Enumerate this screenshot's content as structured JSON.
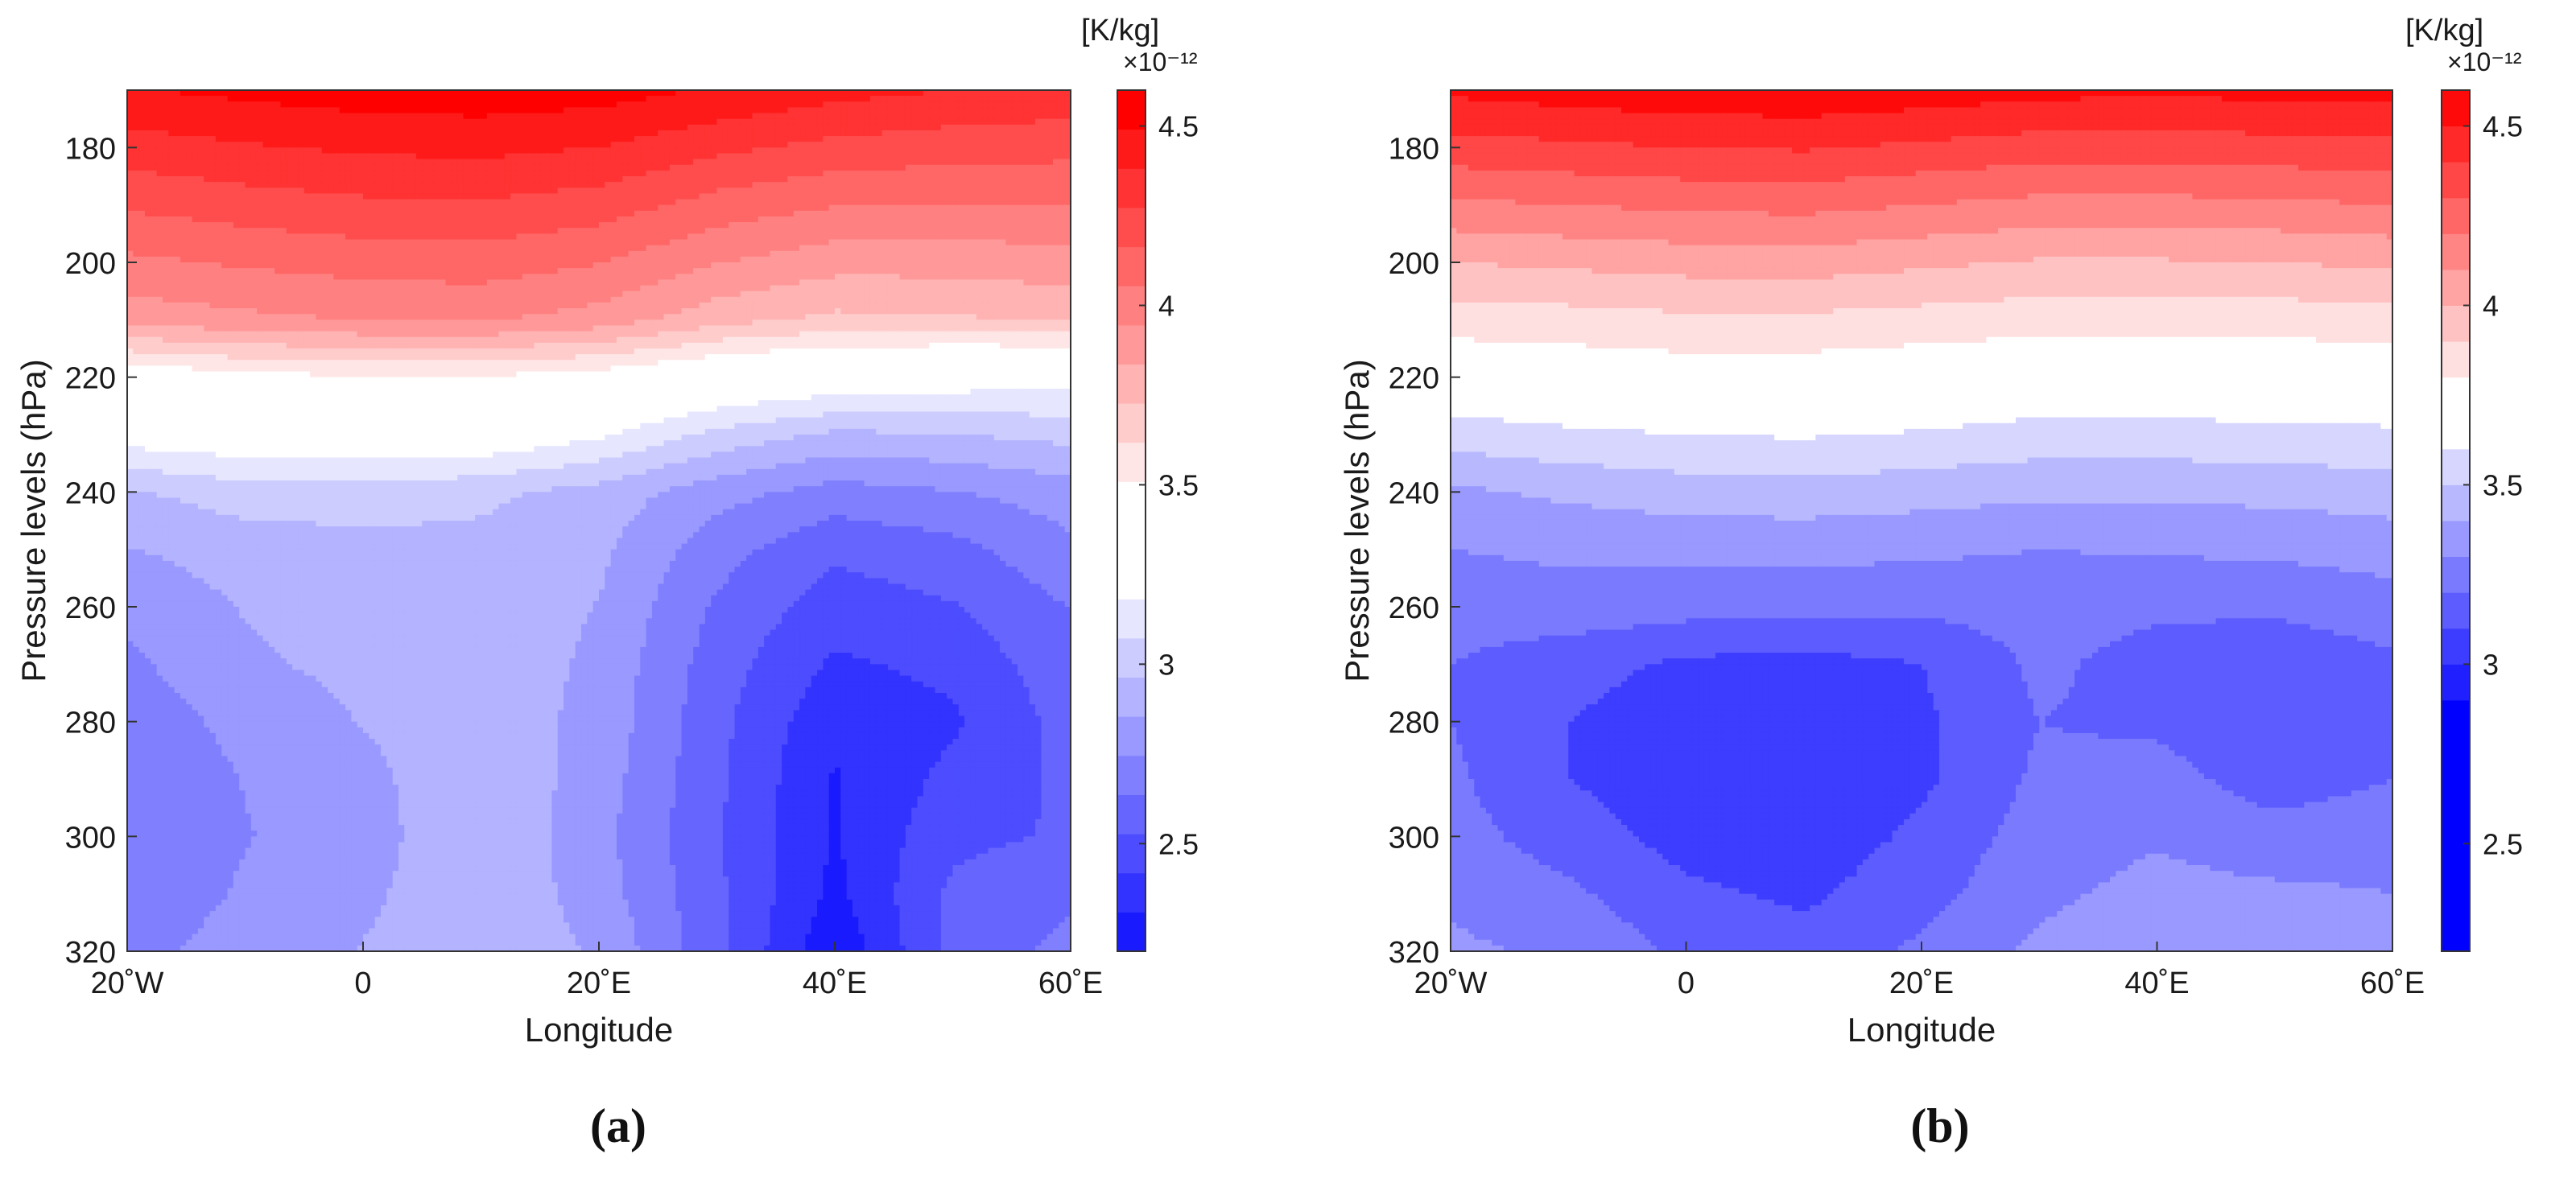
{
  "chart_data": [
    {
      "type": "heatmap",
      "subtype": "filled-contour",
      "panel_label": "(a)",
      "xlabel": "Longitude",
      "ylabel": "Pressure levels (hPa)",
      "x_ticks": [
        -20,
        0,
        20,
        40,
        60
      ],
      "x_tick_labels": [
        "20˚W",
        "0",
        "20˚E",
        "40˚E",
        "60˚E"
      ],
      "xlim": [
        -20,
        60
      ],
      "y_ticks": [
        180,
        200,
        220,
        240,
        260,
        280,
        300,
        320
      ],
      "y_tick_labels": [
        "180",
        "200",
        "220",
        "240",
        "260",
        "280",
        "300",
        "320"
      ],
      "ylim": [
        170,
        320
      ],
      "y_reversed": true,
      "colorbar": {
        "unit": "[K/kg]",
        "exponent": "×10⁻¹²",
        "range": [
          2.2,
          4.6
        ],
        "ticks": [
          2.5,
          3,
          3.5,
          4,
          4.5
        ],
        "tick_labels": [
          "2.5",
          "3",
          "3.5",
          "4",
          "4.5"
        ],
        "colors": [
          "#1a1aff",
          "#3333ff",
          "#4d4dff",
          "#6666ff",
          "#8080ff",
          "#9999ff",
          "#b3b3ff",
          "#ccccff",
          "#e6e6ff",
          "#ffffff",
          "#ffffff",
          "#ffffff",
          "#ffe6e6",
          "#ffcccc",
          "#ffb3b3",
          "#ff9999",
          "#ff8080",
          "#ff6666",
          "#ff4d4d",
          "#ff3333",
          "#ff1a1a",
          "#ff0000"
        ]
      },
      "field": {
        "longitudes": [
          -20,
          -10,
          0,
          10,
          20,
          30,
          40,
          50,
          60
        ],
        "levels": [
          170,
          180,
          190,
          200,
          210,
          220,
          230,
          240,
          250,
          260,
          270,
          280,
          290,
          300,
          310,
          320
        ],
        "values": [
          [
            4.48,
            4.52,
            4.55,
            4.56,
            4.54,
            4.48,
            4.42,
            4.38,
            4.35
          ],
          [
            4.33,
            4.37,
            4.4,
            4.41,
            4.38,
            4.3,
            4.24,
            4.21,
            4.2
          ],
          [
            4.18,
            4.22,
            4.25,
            4.26,
            4.22,
            4.12,
            4.06,
            4.05,
            4.05
          ],
          [
            4.03,
            4.07,
            4.1,
            4.11,
            4.06,
            3.95,
            3.88,
            3.88,
            3.9
          ],
          [
            3.88,
            3.92,
            3.95,
            3.96,
            3.9,
            3.77,
            3.7,
            3.71,
            3.75
          ],
          [
            3.4,
            3.47,
            3.5,
            3.5,
            3.45,
            3.35,
            3.29,
            3.26,
            3.22
          ],
          [
            3.25,
            3.29,
            3.31,
            3.3,
            3.2,
            3.04,
            2.94,
            2.96,
            3.0
          ],
          [
            2.95,
            3.02,
            3.02,
            2.99,
            2.92,
            2.79,
            2.7,
            2.74,
            2.8
          ],
          [
            2.85,
            2.9,
            2.93,
            2.93,
            2.88,
            2.68,
            2.55,
            2.6,
            2.72
          ],
          [
            2.78,
            2.86,
            2.89,
            2.93,
            2.85,
            2.62,
            2.47,
            2.52,
            2.64
          ],
          [
            2.72,
            2.84,
            2.88,
            2.93,
            2.83,
            2.58,
            2.4,
            2.45,
            2.6
          ],
          [
            2.68,
            2.78,
            2.86,
            2.92,
            2.82,
            2.56,
            2.33,
            2.4,
            2.57
          ],
          [
            2.65,
            2.75,
            2.82,
            2.95,
            2.8,
            2.55,
            2.3,
            2.45,
            2.55
          ],
          [
            2.64,
            2.74,
            2.8,
            2.96,
            2.78,
            2.54,
            2.3,
            2.5,
            2.54
          ],
          [
            2.66,
            2.76,
            2.83,
            2.95,
            2.8,
            2.55,
            2.28,
            2.55,
            2.62
          ],
          [
            2.7,
            2.8,
            2.86,
            2.94,
            2.84,
            2.56,
            2.22,
            2.56,
            2.67
          ]
        ]
      }
    },
    {
      "type": "heatmap",
      "subtype": "filled-contour",
      "panel_label": "(b)",
      "xlabel": "Longitude",
      "ylabel": "Pressure levels (hPa)",
      "x_ticks": [
        -20,
        0,
        20,
        40,
        60
      ],
      "x_tick_labels": [
        "20˚W",
        "0",
        "20˚E",
        "40˚E",
        "60˚E"
      ],
      "xlim": [
        -20,
        60
      ],
      "y_ticks": [
        180,
        200,
        220,
        240,
        260,
        280,
        300,
        320
      ],
      "y_tick_labels": [
        "180",
        "200",
        "220",
        "240",
        "260",
        "280",
        "300",
        "320"
      ],
      "ylim": [
        170,
        320
      ],
      "y_reversed": true,
      "colorbar": {
        "unit": "[K/kg]",
        "exponent": "×10⁻¹²",
        "range": [
          2.2,
          4.6
        ],
        "ticks": [
          2.5,
          3,
          3.5,
          4,
          4.5
        ],
        "tick_labels": [
          "2.5",
          "3",
          "3.5",
          "4",
          "4.5"
        ],
        "colors": [
          "#0000ff",
          "#0000ff",
          "#0000ff",
          "#0000ff",
          "#0000ff",
          "#0000ff",
          "#0000ff",
          "#1f1fff",
          "#3d3dff",
          "#5c5cff",
          "#7a7aff",
          "#9999ff",
          "#b8b8ff",
          "#d6d6ff",
          "#ffffff",
          "#ffffff",
          "#ffe0e0",
          "#ffc2c2",
          "#ffa3a3",
          "#ff8585",
          "#ff6666",
          "#ff4747",
          "#ff2929",
          "#ff0a0a"
        ]
      },
      "field": {
        "longitudes": [
          -20,
          -10,
          0,
          10,
          20,
          30,
          40,
          50,
          60
        ],
        "levels": [
          170,
          180,
          190,
          200,
          210,
          220,
          230,
          240,
          250,
          260,
          270,
          280,
          290,
          300,
          310,
          320
        ],
        "values": [
          [
            4.52,
            4.55,
            4.57,
            4.58,
            4.56,
            4.53,
            4.52,
            4.53,
            4.54
          ],
          [
            4.36,
            4.38,
            4.4,
            4.41,
            4.38,
            4.35,
            4.35,
            4.36,
            4.37
          ],
          [
            4.18,
            4.2,
            4.22,
            4.23,
            4.2,
            4.17,
            4.17,
            4.18,
            4.2
          ],
          [
            4.0,
            4.02,
            4.04,
            4.05,
            4.02,
            3.99,
            3.99,
            4.0,
            4.02
          ],
          [
            3.85,
            3.86,
            3.88,
            3.88,
            3.86,
            3.84,
            3.84,
            3.84,
            3.86
          ],
          [
            3.7,
            3.72,
            3.74,
            3.74,
            3.72,
            3.7,
            3.7,
            3.71,
            3.72
          ],
          [
            3.55,
            3.58,
            3.6,
            3.61,
            3.59,
            3.56,
            3.56,
            3.57,
            3.58
          ],
          [
            3.38,
            3.42,
            3.45,
            3.46,
            3.44,
            3.42,
            3.42,
            3.43,
            3.45
          ],
          [
            3.3,
            3.32,
            3.33,
            3.33,
            3.32,
            3.3,
            3.31,
            3.32,
            3.34
          ],
          [
            3.24,
            3.26,
            3.24,
            3.24,
            3.22,
            3.24,
            3.22,
            3.22,
            3.26
          ],
          [
            3.2,
            3.14,
            3.08,
            3.06,
            3.1,
            3.22,
            3.16,
            3.12,
            3.18
          ],
          [
            3.2,
            3.1,
            3.04,
            3.03,
            3.08,
            3.2,
            3.18,
            3.12,
            3.16
          ],
          [
            3.22,
            3.1,
            3.04,
            3.03,
            3.08,
            3.22,
            3.24,
            3.15,
            3.2
          ],
          [
            3.24,
            3.15,
            3.06,
            3.04,
            3.12,
            3.25,
            3.29,
            3.24,
            3.26
          ],
          [
            3.28,
            3.22,
            3.12,
            3.08,
            3.16,
            3.28,
            3.33,
            3.32,
            3.3
          ],
          [
            3.32,
            3.28,
            3.18,
            3.14,
            3.22,
            3.32,
            3.36,
            3.38,
            3.34
          ]
        ]
      }
    }
  ]
}
